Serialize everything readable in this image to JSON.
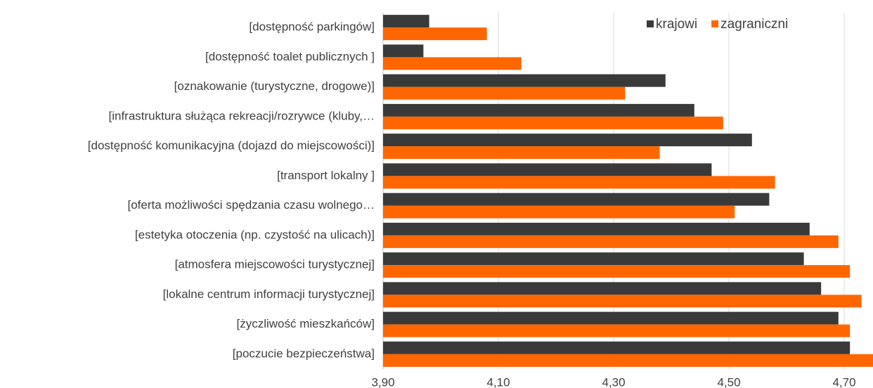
{
  "chart_data": {
    "type": "barh",
    "categories": [
      "[dostępność parkingów]",
      "[dostępność toalet publicznych ]",
      "[oznakowanie (turystyczne, drogowe)]",
      "[infrastruktura służąca rekreacji/rozrywce (kluby,…",
      "[dostępność komunikacyjna (dojazd do miejscowości)]",
      "[transport lokalny ]",
      "[oferta możliwości spędzania czasu wolnego…",
      "[estetyka otoczenia (np. czystość na ulicach)]",
      "[atmosfera miejscowości turystycznej]",
      "[lokalne centrum informacji turystycznej]",
      "[życzliwość mieszkańców]",
      "[poczucie bezpieczeństwa]"
    ],
    "series": [
      {
        "name": "krajowi",
        "color": "#3a3a3a",
        "values": [
          3.98,
          3.97,
          4.39,
          4.44,
          4.54,
          4.47,
          4.57,
          4.64,
          4.63,
          4.66,
          4.69,
          4.71
        ]
      },
      {
        "name": "zagraniczni",
        "color": "#ff6600",
        "values": [
          4.08,
          4.14,
          4.32,
          4.49,
          4.38,
          4.58,
          4.51,
          4.69,
          4.71,
          4.73,
          4.71,
          4.75
        ]
      }
    ],
    "xlim": [
      3.9,
      4.75
    ],
    "xticks": [
      {
        "value": 3.9,
        "label": "3,90"
      },
      {
        "value": 4.1,
        "label": "4,10"
      },
      {
        "value": 4.3,
        "label": "4,30"
      },
      {
        "value": 4.5,
        "label": "4,50"
      },
      {
        "value": 4.7,
        "label": "4,70"
      }
    ],
    "grid": true,
    "legend": "top-right"
  }
}
